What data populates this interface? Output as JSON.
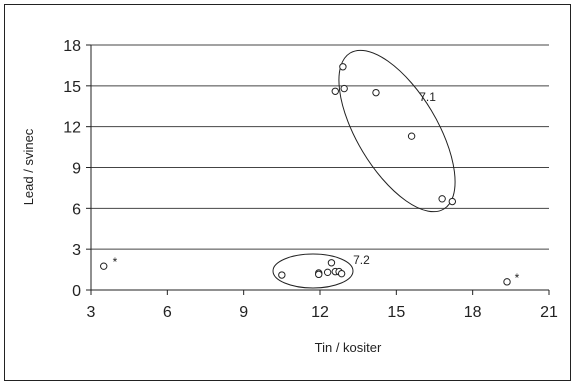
{
  "chart_data": {
    "type": "scatter",
    "title": "",
    "xlabel": "Tin / kositer",
    "ylabel": "Lead / svinec",
    "xlim": [
      3,
      21
    ],
    "ylim": [
      0,
      18
    ],
    "x_ticks": [
      3,
      6,
      9,
      12,
      15,
      18,
      21
    ],
    "y_ticks": [
      0,
      3,
      6,
      9,
      12,
      15,
      18
    ],
    "grid": "horizontal",
    "legend": "none",
    "series": [
      {
        "marker": "open-circle",
        "points": [
          {
            "x": 12.9,
            "y": 16.4
          },
          {
            "x": 12.6,
            "y": 14.6
          },
          {
            "x": 12.95,
            "y": 14.8
          },
          {
            "x": 14.2,
            "y": 14.5
          },
          {
            "x": 15.6,
            "y": 11.3
          },
          {
            "x": 16.8,
            "y": 6.7
          },
          {
            "x": 17.2,
            "y": 6.5
          },
          {
            "x": 10.5,
            "y": 1.1
          },
          {
            "x": 11.95,
            "y": 1.25
          },
          {
            "x": 11.95,
            "y": 1.15
          },
          {
            "x": 12.3,
            "y": 1.3
          },
          {
            "x": 12.45,
            "y": 2.0
          },
          {
            "x": 12.6,
            "y": 1.35
          },
          {
            "x": 12.75,
            "y": 1.35
          },
          {
            "x": 12.85,
            "y": 1.2
          },
          {
            "x": 3.5,
            "y": 1.75
          },
          {
            "x": 19.35,
            "y": 0.6
          }
        ]
      }
    ],
    "groups": [
      {
        "label": "7.1",
        "label_x": 15.9,
        "label_y": 13.9
      },
      {
        "label": "7.2",
        "label_x": 13.3,
        "label_y": 1.9
      }
    ],
    "markers": [
      {
        "label": "*",
        "x": 3.85,
        "y": 2.05
      },
      {
        "label": "*",
        "x": 19.65,
        "y": 0.9
      }
    ]
  }
}
